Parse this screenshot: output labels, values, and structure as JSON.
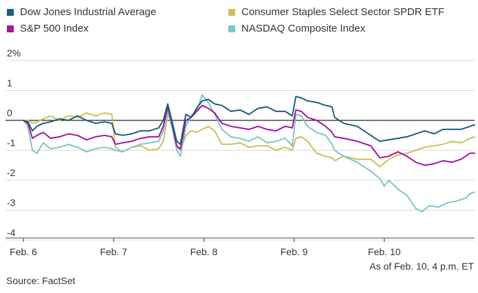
{
  "chart_data": {
    "type": "line",
    "y_unit_label": "2%",
    "y_ticks": [
      2,
      1,
      0,
      -1,
      -2,
      -3,
      -4
    ],
    "y_tick_labels": [
      "2%",
      "1",
      "0",
      "-1",
      "-2",
      "-3",
      "-4"
    ],
    "ylim": [
      -4.2,
      2
    ],
    "xlim": [
      0,
      5
    ],
    "x_ticks": [
      0,
      1,
      2,
      3,
      4
    ],
    "x_tick_labels": [
      "Feb. 6",
      "Feb. 7",
      "Feb. 8",
      "Feb. 9",
      "Feb. 10"
    ],
    "grid": "horizontal",
    "legend_position": "top",
    "series": [
      {
        "name": "Dow Jones Industrial Average",
        "color": "#1a5f7a",
        "points": [
          [
            0,
            0
          ],
          [
            0.05,
            -0.05
          ],
          [
            0.1,
            -0.35
          ],
          [
            0.15,
            -0.2
          ],
          [
            0.22,
            -0.1
          ],
          [
            0.3,
            -0.05
          ],
          [
            0.4,
            0.05
          ],
          [
            0.5,
            0.0
          ],
          [
            0.6,
            0.15
          ],
          [
            0.7,
            0.0
          ],
          [
            0.8,
            -0.1
          ],
          [
            0.9,
            -0.05
          ],
          [
            0.98,
            -0.1
          ],
          [
            1.02,
            -0.45
          ],
          [
            1.1,
            -0.5
          ],
          [
            1.2,
            -0.45
          ],
          [
            1.3,
            -0.35
          ],
          [
            1.4,
            -0.35
          ],
          [
            1.5,
            -0.25
          ],
          [
            1.55,
            0.0
          ],
          [
            1.6,
            0.55
          ],
          [
            1.66,
            -0.2
          ],
          [
            1.7,
            -0.7
          ],
          [
            1.74,
            -0.8
          ],
          [
            1.8,
            0.2
          ],
          [
            1.86,
            0.1
          ],
          [
            1.92,
            0.4
          ],
          [
            1.98,
            0.65
          ],
          [
            2.05,
            0.7
          ],
          [
            2.12,
            0.55
          ],
          [
            2.2,
            0.5
          ],
          [
            2.3,
            0.3
          ],
          [
            2.4,
            0.35
          ],
          [
            2.5,
            0.2
          ],
          [
            2.6,
            0.4
          ],
          [
            2.7,
            0.45
          ],
          [
            2.8,
            0.3
          ],
          [
            2.9,
            0.3
          ],
          [
            2.98,
            0.15
          ],
          [
            3.02,
            0.8
          ],
          [
            3.08,
            0.75
          ],
          [
            3.15,
            0.65
          ],
          [
            3.25,
            0.6
          ],
          [
            3.35,
            0.5
          ],
          [
            3.42,
            0.45
          ],
          [
            3.45,
            0.1
          ],
          [
            3.55,
            -0.1
          ],
          [
            3.7,
            -0.2
          ],
          [
            3.85,
            -0.5
          ],
          [
            3.95,
            -0.7
          ],
          [
            4.05,
            -0.65
          ],
          [
            4.15,
            -0.6
          ],
          [
            4.25,
            -0.55
          ],
          [
            4.35,
            -0.45
          ],
          [
            4.45,
            -0.35
          ],
          [
            4.55,
            -0.45
          ],
          [
            4.65,
            -0.3
          ],
          [
            4.75,
            -0.3
          ],
          [
            4.85,
            -0.3
          ],
          [
            4.95,
            -0.2
          ],
          [
            5.0,
            -0.15
          ]
        ]
      },
      {
        "name": "S&P 500 Index",
        "color": "#a0179e",
        "points": [
          [
            0,
            0
          ],
          [
            0.05,
            -0.1
          ],
          [
            0.1,
            -0.6
          ],
          [
            0.15,
            -0.5
          ],
          [
            0.22,
            -0.4
          ],
          [
            0.3,
            -0.6
          ],
          [
            0.4,
            -0.55
          ],
          [
            0.5,
            -0.45
          ],
          [
            0.6,
            -0.5
          ],
          [
            0.7,
            -0.65
          ],
          [
            0.8,
            -0.55
          ],
          [
            0.9,
            -0.5
          ],
          [
            0.98,
            -0.55
          ],
          [
            1.02,
            -0.8
          ],
          [
            1.1,
            -0.75
          ],
          [
            1.2,
            -0.7
          ],
          [
            1.3,
            -0.6
          ],
          [
            1.4,
            -0.55
          ],
          [
            1.5,
            -0.55
          ],
          [
            1.55,
            -0.2
          ],
          [
            1.6,
            0.45
          ],
          [
            1.66,
            -0.3
          ],
          [
            1.7,
            -0.85
          ],
          [
            1.74,
            -0.95
          ],
          [
            1.8,
            0.0
          ],
          [
            1.86,
            0.1
          ],
          [
            1.92,
            0.3
          ],
          [
            1.98,
            0.5
          ],
          [
            2.05,
            0.4
          ],
          [
            2.12,
            0.25
          ],
          [
            2.2,
            -0.1
          ],
          [
            2.3,
            -0.2
          ],
          [
            2.4,
            -0.25
          ],
          [
            2.5,
            -0.3
          ],
          [
            2.6,
            -0.2
          ],
          [
            2.7,
            -0.3
          ],
          [
            2.8,
            -0.35
          ],
          [
            2.9,
            -0.2
          ],
          [
            2.98,
            -0.25
          ],
          [
            3.02,
            0.35
          ],
          [
            3.08,
            0.3
          ],
          [
            3.15,
            0.1
          ],
          [
            3.25,
            0.0
          ],
          [
            3.35,
            -0.2
          ],
          [
            3.42,
            -0.4
          ],
          [
            3.45,
            -0.55
          ],
          [
            3.55,
            -0.6
          ],
          [
            3.7,
            -0.7
          ],
          [
            3.85,
            -0.85
          ],
          [
            3.95,
            -1.25
          ],
          [
            4.05,
            -1.2
          ],
          [
            4.15,
            -1.05
          ],
          [
            4.25,
            -1.2
          ],
          [
            4.35,
            -1.4
          ],
          [
            4.45,
            -1.5
          ],
          [
            4.55,
            -1.45
          ],
          [
            4.65,
            -1.35
          ],
          [
            4.75,
            -1.4
          ],
          [
            4.85,
            -1.3
          ],
          [
            4.95,
            -1.1
          ],
          [
            5.0,
            -1.1
          ]
        ]
      },
      {
        "name": "Consumer Staples Select Sector SPDR ETF",
        "color": "#cfbf5a",
        "points": [
          [
            0,
            0
          ],
          [
            0.05,
            0.0
          ],
          [
            0.1,
            -0.1
          ],
          [
            0.15,
            -0.05
          ],
          [
            0.22,
            0.05
          ],
          [
            0.3,
            0.15
          ],
          [
            0.4,
            0.0
          ],
          [
            0.5,
            0.15
          ],
          [
            0.6,
            0.1
          ],
          [
            0.7,
            0.25
          ],
          [
            0.8,
            0.15
          ],
          [
            0.9,
            0.25
          ],
          [
            0.98,
            0.2
          ],
          [
            1.02,
            -0.9
          ],
          [
            1.1,
            -1.05
          ],
          [
            1.2,
            -0.9
          ],
          [
            1.3,
            -0.85
          ],
          [
            1.4,
            -1.0
          ],
          [
            1.5,
            -0.95
          ],
          [
            1.55,
            -0.7
          ],
          [
            1.6,
            0.2
          ],
          [
            1.66,
            -0.2
          ],
          [
            1.7,
            -0.9
          ],
          [
            1.74,
            -1.0
          ],
          [
            1.8,
            -0.5
          ],
          [
            1.86,
            -0.35
          ],
          [
            1.92,
            -0.4
          ],
          [
            1.98,
            -0.3
          ],
          [
            2.05,
            -0.2
          ],
          [
            2.12,
            -0.35
          ],
          [
            2.2,
            -0.8
          ],
          [
            2.3,
            -0.8
          ],
          [
            2.4,
            -0.75
          ],
          [
            2.5,
            -0.9
          ],
          [
            2.6,
            -0.85
          ],
          [
            2.7,
            -0.85
          ],
          [
            2.8,
            -1.0
          ],
          [
            2.9,
            -0.9
          ],
          [
            2.98,
            -1.0
          ],
          [
            3.02,
            -0.6
          ],
          [
            3.08,
            -0.55
          ],
          [
            3.15,
            -0.7
          ],
          [
            3.25,
            -1.1
          ],
          [
            3.35,
            -1.2
          ],
          [
            3.42,
            -1.25
          ],
          [
            3.45,
            -1.35
          ],
          [
            3.55,
            -1.2
          ],
          [
            3.7,
            -1.3
          ],
          [
            3.85,
            -1.3
          ],
          [
            3.95,
            -1.55
          ],
          [
            4.05,
            -1.3
          ],
          [
            4.15,
            -1.15
          ],
          [
            4.25,
            -1.1
          ],
          [
            4.35,
            -1.0
          ],
          [
            4.45,
            -0.9
          ],
          [
            4.55,
            -0.85
          ],
          [
            4.65,
            -0.8
          ],
          [
            4.75,
            -0.7
          ],
          [
            4.85,
            -0.75
          ],
          [
            4.95,
            -0.6
          ],
          [
            5.0,
            -0.55
          ]
        ]
      },
      {
        "name": "NASDAQ Composite Index",
        "color": "#7cc7c7",
        "points": [
          [
            0,
            0
          ],
          [
            0.05,
            -0.2
          ],
          [
            0.1,
            -1.0
          ],
          [
            0.15,
            -1.1
          ],
          [
            0.22,
            -0.75
          ],
          [
            0.3,
            -0.95
          ],
          [
            0.4,
            -0.9
          ],
          [
            0.5,
            -0.8
          ],
          [
            0.6,
            -0.9
          ],
          [
            0.7,
            -1.05
          ],
          [
            0.8,
            -0.95
          ],
          [
            0.9,
            -0.9
          ],
          [
            0.98,
            -0.95
          ],
          [
            1.02,
            -1.0
          ],
          [
            1.1,
            -1.05
          ],
          [
            1.2,
            -0.9
          ],
          [
            1.3,
            -0.8
          ],
          [
            1.4,
            -0.75
          ],
          [
            1.5,
            -0.7
          ],
          [
            1.55,
            -0.35
          ],
          [
            1.6,
            0.35
          ],
          [
            1.66,
            -0.4
          ],
          [
            1.7,
            -1.0
          ],
          [
            1.74,
            -1.2
          ],
          [
            1.8,
            -0.2
          ],
          [
            1.86,
            0.15
          ],
          [
            1.92,
            0.3
          ],
          [
            1.98,
            0.85
          ],
          [
            2.05,
            0.6
          ],
          [
            2.12,
            0.2
          ],
          [
            2.2,
            -0.3
          ],
          [
            2.3,
            -0.55
          ],
          [
            2.4,
            -0.6
          ],
          [
            2.5,
            -0.7
          ],
          [
            2.6,
            -0.55
          ],
          [
            2.7,
            -0.75
          ],
          [
            2.8,
            -0.7
          ],
          [
            2.9,
            -0.6
          ],
          [
            2.98,
            -0.85
          ],
          [
            3.02,
            0.2
          ],
          [
            3.08,
            0.15
          ],
          [
            3.15,
            -0.2
          ],
          [
            3.25,
            -0.4
          ],
          [
            3.35,
            -0.5
          ],
          [
            3.42,
            -0.8
          ],
          [
            3.45,
            -1.0
          ],
          [
            3.55,
            -1.2
          ],
          [
            3.7,
            -1.4
          ],
          [
            3.85,
            -1.7
          ],
          [
            3.95,
            -1.95
          ],
          [
            4.0,
            -2.2
          ],
          [
            4.05,
            -2.0
          ],
          [
            4.15,
            -2.3
          ],
          [
            4.25,
            -2.5
          ],
          [
            4.35,
            -2.95
          ],
          [
            4.42,
            -3.05
          ],
          [
            4.5,
            -2.85
          ],
          [
            4.6,
            -2.9
          ],
          [
            4.7,
            -2.75
          ],
          [
            4.8,
            -2.7
          ],
          [
            4.9,
            -2.6
          ],
          [
            4.95,
            -2.45
          ],
          [
            5.0,
            -2.4
          ]
        ]
      }
    ],
    "annotation": "As of Feb. 10, 4 p.m. ET",
    "source": "Source: FactSet"
  }
}
